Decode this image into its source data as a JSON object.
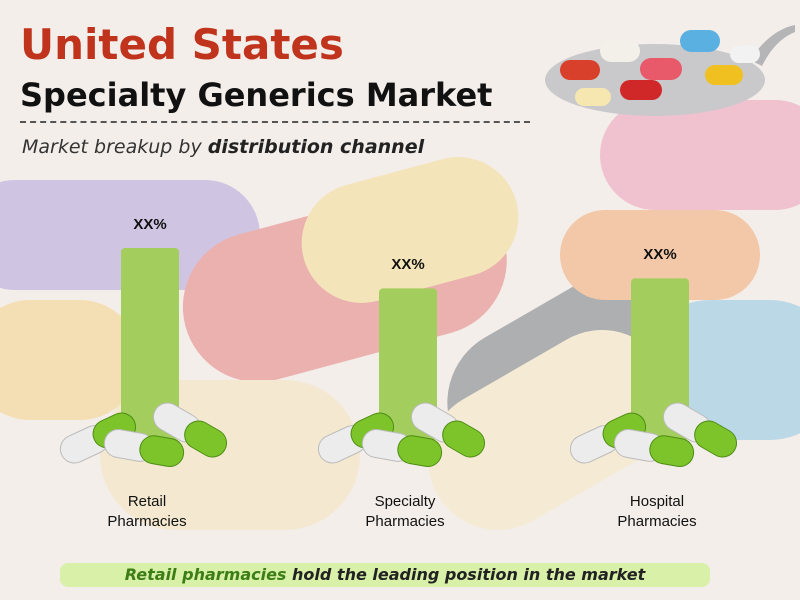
{
  "chart_data": {
    "type": "bar",
    "title": "United States",
    "subtitle": "Specialty Generics Market",
    "caption": [
      "Market breakup by ",
      "distribution channel"
    ],
    "categories": [
      "Retail Pharmacies",
      "Specialty Pharmacies",
      "Hospital Pharmacies"
    ],
    "values": [
      38,
      30,
      32
    ],
    "value_labels": [
      "XX%",
      "XX%",
      "XX%"
    ],
    "color": "#a3cd5c",
    "footer": [
      "Retail pharmacies",
      " hold the leading position in the market"
    ]
  }
}
